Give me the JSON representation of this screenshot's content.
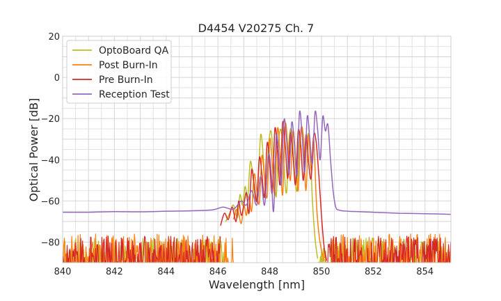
{
  "chart_data": {
    "type": "line",
    "title": "D4454 V20275 Ch. 7",
    "xlabel": "Wavelength [nm]",
    "ylabel": "Optical Power [dB]",
    "xlim": [
      840,
      855
    ],
    "ylim": [
      -90,
      20
    ],
    "xticks": [
      840,
      842,
      844,
      846,
      848,
      850,
      852,
      854
    ],
    "yticks": [
      20,
      0,
      -20,
      -40,
      -60,
      -80
    ],
    "grid": true,
    "legend_position": "top-left",
    "series": [
      {
        "name": "OptoBoard QA",
        "color": "#bcbd22",
        "noise": {
          "x_ranges": [
            [
              840,
              846.3
            ],
            [
              849.85,
              855
            ]
          ],
          "low": -90,
          "high": -78,
          "seed": 11
        },
        "x": [
          846.3,
          846.45,
          846.6,
          846.75,
          846.85,
          846.95,
          847.05,
          847.15,
          847.25,
          847.35,
          847.45,
          847.55,
          847.65,
          847.75,
          847.85,
          847.95,
          848.05,
          848.15,
          848.25,
          848.35,
          848.45,
          848.55,
          848.65,
          848.75,
          848.85,
          848.95,
          849.05,
          849.15,
          849.25,
          849.35,
          849.45,
          849.55,
          849.65,
          849.75,
          849.85
        ],
        "y": [
          -70,
          -66,
          -62,
          -68,
          -57,
          -62,
          -53,
          -58,
          -41,
          -48,
          -59,
          -52,
          -28,
          -38,
          -55,
          -34,
          -26,
          -40,
          -58,
          -31,
          -26,
          -43,
          -56,
          -30,
          -26,
          -44,
          -55,
          -31,
          -27,
          -45,
          -29,
          -31,
          -60,
          -78,
          -88
        ]
      },
      {
        "name": "Post Burn-In",
        "color": "#ff7f0e",
        "noise": {
          "x_ranges": [
            [
              840,
              846.6
            ],
            [
              850.1,
              855
            ]
          ],
          "low": -90,
          "high": -76,
          "seed": 23
        },
        "x": [
          846.6,
          846.75,
          846.9,
          847.0,
          847.1,
          847.2,
          847.3,
          847.4,
          847.5,
          847.6,
          847.7,
          847.8,
          847.9,
          848.0,
          848.1,
          848.2,
          848.3,
          848.4,
          848.5,
          848.6,
          848.7,
          848.8,
          848.9,
          849.0,
          849.1,
          849.2,
          849.3,
          849.4,
          849.5,
          849.6,
          849.7,
          849.8,
          849.9,
          850.0,
          850.1
        ],
        "y": [
          -69,
          -64,
          -71,
          -62,
          -67,
          -58,
          -65,
          -47,
          -55,
          -61,
          -38,
          -49,
          -58,
          -30,
          -42,
          -57,
          -25,
          -37,
          -57,
          -23,
          -34,
          -50,
          -26,
          -39,
          -55,
          -26,
          -29,
          -55,
          -28,
          -45,
          -30,
          -60,
          -76,
          -84,
          -89
        ]
      },
      {
        "name": "Pre Burn-In",
        "color": "#d62728",
        "noise": {
          "x_ranges": [
            [
              840,
              846.1
            ],
            [
              850.2,
              855
            ]
          ],
          "low": -90,
          "high": -77,
          "seed": 37
        },
        "x": [
          846.1,
          846.25,
          846.4,
          846.55,
          846.7,
          846.8,
          846.9,
          847.0,
          847.1,
          847.2,
          847.3,
          847.4,
          847.5,
          847.6,
          847.7,
          847.8,
          847.9,
          848.0,
          848.1,
          848.2,
          848.3,
          848.4,
          848.5,
          848.6,
          848.7,
          848.8,
          848.9,
          849.0,
          849.1,
          849.2,
          849.3,
          849.4,
          849.5,
          849.6,
          849.7,
          849.8,
          849.9,
          850.0,
          850.1,
          850.2
        ],
        "y": [
          -72,
          -66,
          -69,
          -63,
          -70,
          -60,
          -67,
          -62,
          -56,
          -66,
          -45,
          -52,
          -60,
          -39,
          -47,
          -58,
          -32,
          -42,
          -56,
          -25,
          -36,
          -52,
          -22,
          -33,
          -49,
          -27,
          -38,
          -52,
          -26,
          -33,
          -50,
          -28,
          -41,
          -49,
          -28,
          -32,
          -48,
          -67,
          -82,
          -89
        ]
      },
      {
        "name": "Reception Test",
        "color": "#9467bd",
        "x": [
          840,
          841,
          842,
          843,
          844,
          845,
          845.8,
          846.2,
          846.6,
          846.9,
          847.1,
          847.3,
          847.5,
          847.65,
          847.8,
          847.95,
          848.05,
          848.15,
          848.25,
          848.35,
          848.45,
          848.55,
          848.65,
          848.75,
          848.85,
          848.95,
          849.05,
          849.15,
          849.25,
          849.35,
          849.45,
          849.55,
          849.65,
          849.75,
          849.85,
          849.95,
          850.05,
          850.15,
          850.25,
          850.35,
          850.45,
          850.55,
          850.7,
          851,
          852,
          853,
          854,
          855
        ],
        "y": [
          -65.5,
          -65.5,
          -65.2,
          -65.3,
          -65,
          -64.8,
          -64.3,
          -63,
          -64,
          -60,
          -62,
          -55,
          -62,
          -48,
          -62,
          -38,
          -45,
          -65,
          -29,
          -37,
          -52,
          -21,
          -30,
          -47,
          -22,
          -32,
          -48,
          -17,
          -28,
          -46,
          -19,
          -30,
          -42,
          -17,
          -25,
          -40,
          -19,
          -26,
          -23,
          -40,
          -55,
          -63,
          -64.5,
          -65,
          -65.5,
          -66,
          -66.2,
          -66.5
        ]
      }
    ]
  }
}
